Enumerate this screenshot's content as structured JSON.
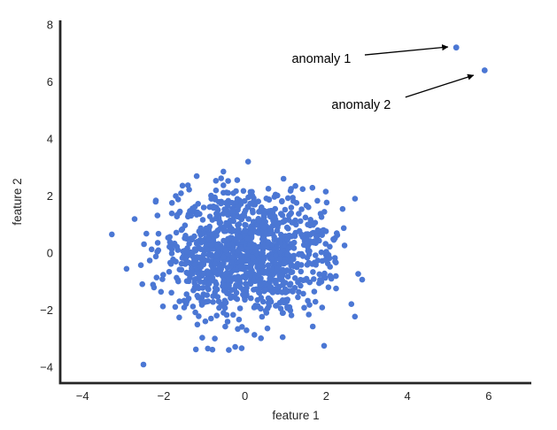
{
  "figure": {
    "background": "#ffffff"
  },
  "chart_data": {
    "type": "scatter",
    "title": "",
    "xlabel": "feature 1",
    "ylabel": "feature 2",
    "xticks": [
      -4,
      -2,
      0,
      2,
      4,
      6
    ],
    "yticks": [
      -4,
      -2,
      0,
      2,
      4,
      6,
      8
    ],
    "xlim": [
      -4.55,
      7.05
    ],
    "ylim": [
      -4.55,
      8.15
    ],
    "grid": false,
    "legend": null,
    "marker_color": "#4b77d4",
    "axis_color": "#262626",
    "text_color": "#262626",
    "cluster": {
      "description": "Dense Gaussian blob of normal (inlier) points centered at the origin",
      "n": 1200,
      "mean": [
        0,
        0
      ],
      "std": [
        1.0,
        1.08
      ],
      "seed": 42,
      "x_range": [
        -3.3,
        3.2
      ],
      "y_range": [
        -3.5,
        3.5
      ],
      "extra_points": [
        [
          -2.5,
          -3.9
        ]
      ]
    },
    "anomalies": [
      {
        "label": "anomaly 1",
        "x": 5.2,
        "y": 7.2,
        "label_x": 1.88,
        "label_y": 6.82,
        "arrow": {
          "x1": 2.95,
          "y1": 6.94,
          "x2": 5.0,
          "y2": 7.22
        }
      },
      {
        "label": "anomaly 2",
        "x": 5.9,
        "y": 6.4,
        "label_x": 2.86,
        "label_y": 5.21,
        "arrow": {
          "x1": 3.95,
          "y1": 5.46,
          "x2": 5.63,
          "y2": 6.23
        }
      }
    ]
  }
}
